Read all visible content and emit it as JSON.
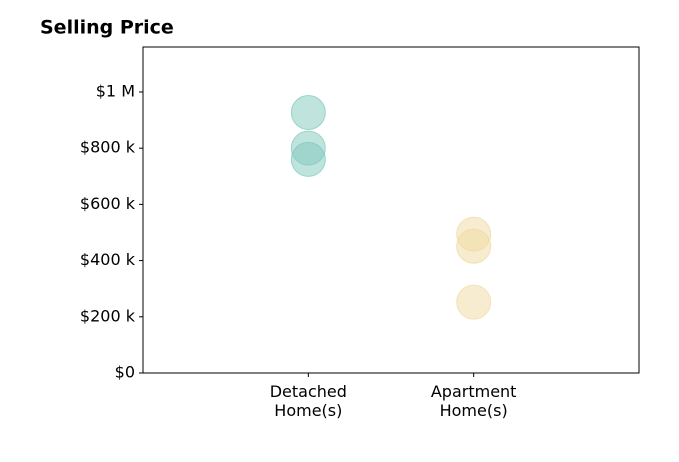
{
  "chart_data": {
    "type": "strip",
    "title": "Selling Price",
    "categories": [
      "Detached Home(s)",
      "Apartment Home(s)"
    ],
    "values": [
      [
        927000,
        800000,
        760000
      ],
      [
        494000,
        451000,
        252000
      ]
    ],
    "colors": [
      "#7fc8bb",
      "#f0d9a0"
    ],
    "xlim": [
      -1,
      2
    ],
    "ylim": [
      0,
      1160000
    ],
    "yticks": [
      {
        "value": 0,
        "label": "$0"
      },
      {
        "value": 200000,
        "label": "$200 k"
      },
      {
        "value": 400000,
        "label": "$400 k"
      },
      {
        "value": 600000,
        "label": "$600 k"
      },
      {
        "value": 800000,
        "label": "$800 k"
      },
      {
        "value": 1000000,
        "label": "$1 M"
      }
    ],
    "grid": false
  }
}
